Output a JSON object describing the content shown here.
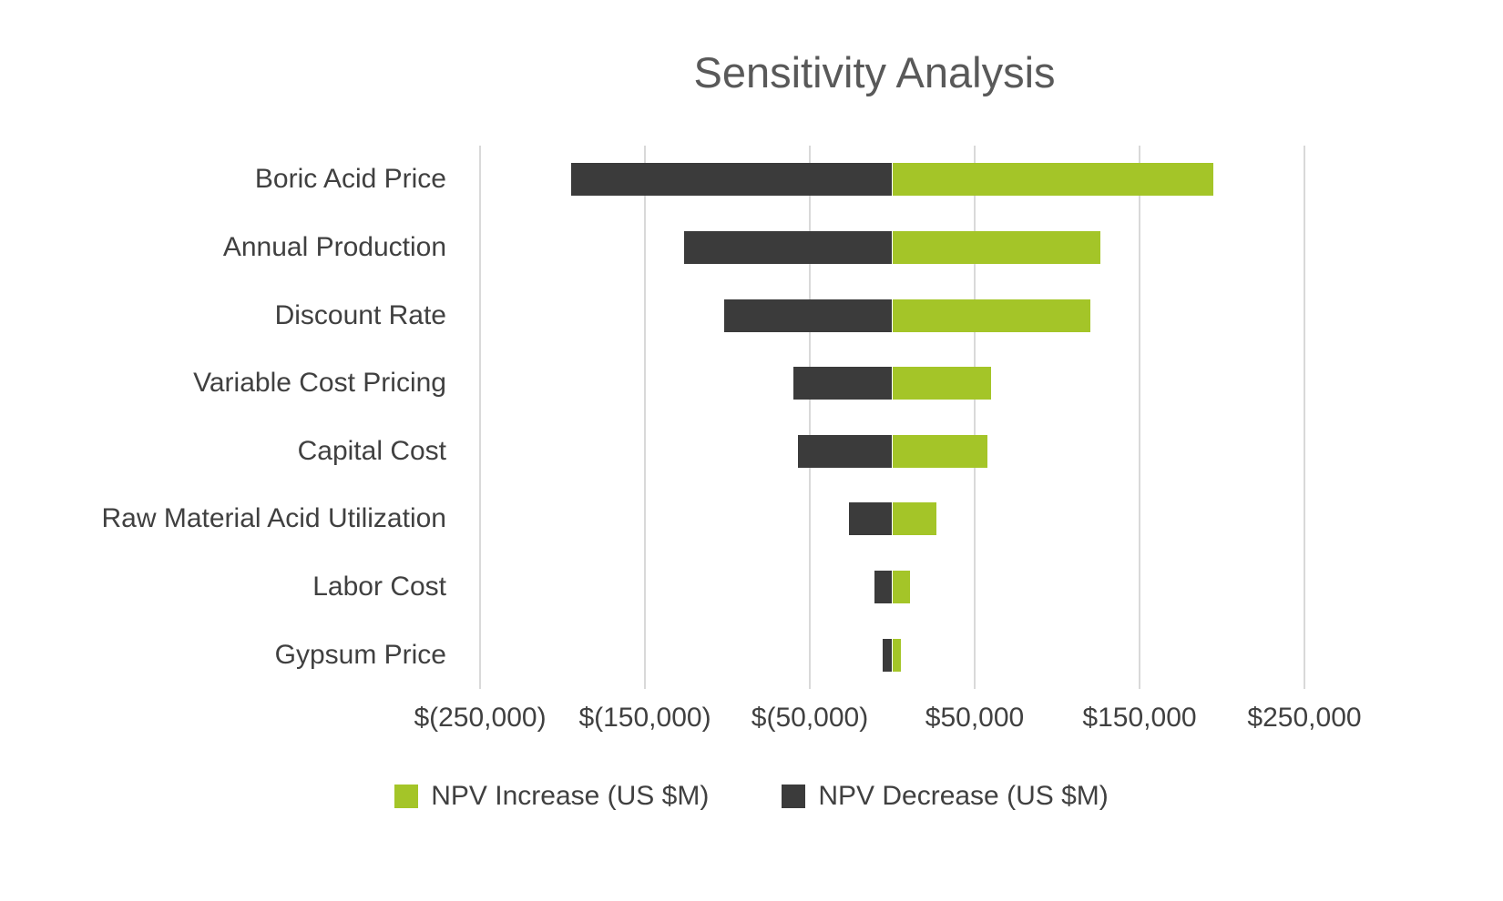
{
  "chart_data": {
    "type": "bar",
    "orientation": "horizontal",
    "title": "Sensitivity Analysis",
    "categories": [
      "Boric Acid Price",
      "Annual Production",
      "Discount Rate",
      "Variable Cost Pricing",
      "Capital Cost",
      "Raw Material Acid Utilization",
      "Labor Cost",
      "Gypsum Price"
    ],
    "series": [
      {
        "name": "NPV Increase (US $M)",
        "color": "#a4c528",
        "values": [
          195000,
          126000,
          120000,
          60000,
          58000,
          27000,
          11000,
          5000
        ]
      },
      {
        "name": "NPV Decrease (US $M)",
        "color": "#3b3b3b",
        "values": [
          -195000,
          -126000,
          -102000,
          -60000,
          -57000,
          -26000,
          -11000,
          -6000
        ]
      }
    ],
    "xlim": [
      -250000,
      250000
    ],
    "x_ticks": [
      -250000,
      -150000,
      -50000,
      50000,
      150000,
      250000
    ],
    "x_tick_labels": [
      "$(250,000)",
      "$(150,000)",
      "$(50,000)",
      "$50,000",
      "$150,000",
      "$250,000"
    ],
    "grid": true,
    "legend_position": "bottom"
  },
  "colors": {
    "increase": "#a4c528",
    "decrease": "#3b3b3b",
    "gridline": "#d9d9d9",
    "title": "#595959",
    "label": "#404040"
  }
}
